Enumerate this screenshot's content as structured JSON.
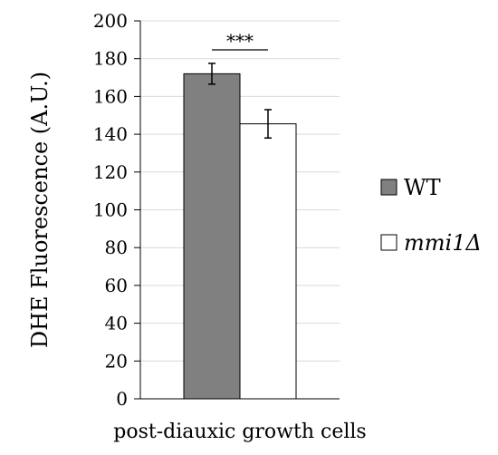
{
  "chart_data": {
    "type": "bar",
    "title": "",
    "xlabel": "post-diauxic growth cells",
    "ylabel": "DHE Fluorescence (A.U.)",
    "ylim": [
      0,
      200
    ],
    "yticks": [
      0,
      20,
      40,
      60,
      80,
      100,
      120,
      140,
      160,
      180,
      200
    ],
    "grid": "horizontal",
    "legend_position": "right",
    "categories": [
      "post-diauxic growth cells"
    ],
    "series": [
      {
        "name": "WT",
        "values": [
          172
        ],
        "error": [
          5.5
        ],
        "color": "#808080"
      },
      {
        "name": "mmi1Δ",
        "values": [
          145.5
        ],
        "error": [
          7.5
        ],
        "color": "#ffffff"
      }
    ],
    "annotations": [
      {
        "text": "***",
        "between": [
          "WT",
          "mmi1Δ"
        ]
      }
    ]
  }
}
